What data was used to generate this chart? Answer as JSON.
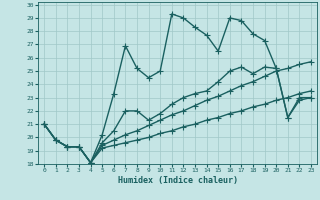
{
  "xlabel": "Humidex (Indice chaleur)",
  "xlim": [
    -0.5,
    23.5
  ],
  "ylim": [
    18,
    30.2
  ],
  "yticks": [
    18,
    19,
    20,
    21,
    22,
    23,
    24,
    25,
    26,
    27,
    28,
    29,
    30
  ],
  "xticks": [
    0,
    1,
    2,
    3,
    4,
    5,
    6,
    7,
    8,
    9,
    10,
    11,
    12,
    13,
    14,
    15,
    16,
    17,
    18,
    19,
    20,
    21,
    22,
    23
  ],
  "bg_color": "#c5e5e5",
  "grid_color": "#a0c8c8",
  "line_color": "#1a6060",
  "line_width": 1.0,
  "marker": "+",
  "marker_size": 4,
  "series": [
    [
      21.0,
      19.8,
      19.3,
      19.3,
      18.1,
      20.2,
      23.3,
      26.9,
      25.2,
      24.5,
      25.0,
      29.3,
      29.0,
      28.3,
      27.7,
      26.5,
      29.0,
      28.8,
      27.8,
      27.3,
      25.2,
      21.5,
      22.8,
      23.0
    ],
    [
      21.0,
      19.8,
      19.3,
      19.3,
      18.1,
      19.4,
      19.8,
      20.2,
      20.5,
      20.9,
      21.3,
      21.7,
      22.0,
      22.4,
      22.8,
      23.1,
      23.5,
      23.9,
      24.2,
      24.6,
      25.0,
      25.2,
      25.5,
      25.7
    ],
    [
      21.0,
      19.8,
      19.3,
      19.3,
      18.1,
      19.2,
      19.4,
      19.6,
      19.8,
      20.0,
      20.3,
      20.5,
      20.8,
      21.0,
      21.3,
      21.5,
      21.8,
      22.0,
      22.3,
      22.5,
      22.8,
      23.0,
      23.3,
      23.5
    ],
    [
      21.0,
      19.8,
      19.3,
      19.3,
      18.1,
      19.6,
      20.5,
      22.0,
      22.0,
      21.3,
      21.8,
      22.5,
      23.0,
      23.3,
      23.5,
      24.2,
      25.0,
      25.3,
      24.8,
      25.3,
      25.2,
      21.5,
      23.0,
      23.0
    ]
  ]
}
